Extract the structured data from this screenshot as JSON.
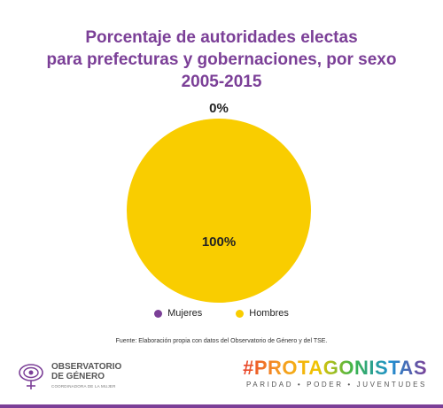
{
  "title": {
    "line1": "Porcentaje de autoridades electas",
    "line2": "para prefecturas y gobernaciones, por sexo",
    "line3": "2005-2015"
  },
  "chart_data": {
    "type": "pie",
    "title": "Porcentaje de autoridades electas para prefecturas y gobernaciones, por sexo 2005-2015",
    "slices": [
      {
        "label": "Mujeres",
        "value": 0,
        "display": "0%",
        "color": "#7b3f97"
      },
      {
        "label": "Hombres",
        "value": 100,
        "display": "100%",
        "color": "#f9cd00"
      }
    ],
    "legend": [
      "Mujeres",
      "Hombres"
    ],
    "legend_position": "bottom"
  },
  "legend": {
    "items": [
      {
        "label": "Mujeres",
        "color": "#7b3f97"
      },
      {
        "label": "Hombres",
        "color": "#f9cd00"
      }
    ]
  },
  "source": "Fuente: Elaboración propia con datos del Observatorio de Género y del TSE.",
  "logos": {
    "left_line1": "OBSERVATORIO",
    "left_line2": "DE GÉNERO",
    "left_line3": "COORDINADORA DE LA MUJER",
    "right_hashtag": "#PROTAGONISTAS",
    "right_tagline": "PARIDAD • PODER • JUVENTUDES"
  },
  "colors": {
    "title": "#7b3f97",
    "mujeres": "#7b3f97",
    "hombres": "#f9cd00",
    "separator": "#7a6a2a"
  }
}
